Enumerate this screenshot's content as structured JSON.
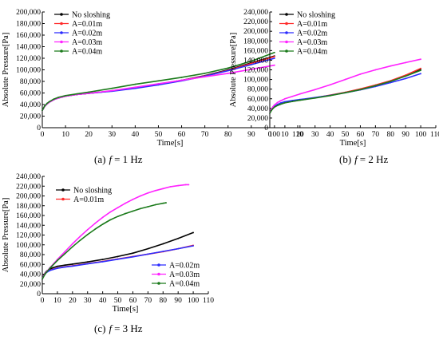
{
  "chart_data": [
    {
      "type": "line",
      "caption": {
        "letter": "(a)",
        "var": "f",
        "value": "= 1 Hz"
      },
      "xlabel": "Time[s]",
      "ylabel": "Absolute Pressure[Pa]",
      "xlim": [
        0,
        110
      ],
      "ylim": [
        0,
        200000
      ],
      "xticks": [
        "0",
        "10",
        "20",
        "30",
        "40",
        "50",
        "60",
        "70",
        "80",
        "90",
        "100",
        "110"
      ],
      "yticks": [
        "0",
        "20,000",
        "40,000",
        "60,000",
        "80,000",
        "100,000",
        "120,000",
        "140,000",
        "160,000",
        "180,000",
        "200,000"
      ],
      "legend": {
        "position": "top-left",
        "groups": [
          [
            0,
            1,
            2,
            3,
            4
          ]
        ]
      },
      "series": [
        {
          "name": "No sloshing",
          "color": "#000000",
          "x": [
            0,
            1,
            2,
            3,
            5,
            7,
            10,
            15,
            20,
            30,
            40,
            50,
            60,
            70,
            80,
            90,
            100
          ],
          "y": [
            30000,
            37000,
            41000,
            44000,
            48500,
            51500,
            54500,
            57500,
            59500,
            63500,
            69000,
            75000,
            82000,
            90000,
            100000,
            112000,
            124000
          ]
        },
        {
          "name": "A=0.01m",
          "color": "#ff2a2a",
          "x": [
            0,
            1,
            2,
            3,
            5,
            7,
            10,
            15,
            20,
            30,
            40,
            50,
            60,
            70,
            80,
            90,
            100
          ],
          "y": [
            30000,
            37000,
            41000,
            44000,
            48500,
            51500,
            54500,
            57500,
            59500,
            63500,
            68500,
            74500,
            81500,
            89500,
            99000,
            111000,
            123000
          ]
        },
        {
          "name": "A=0.02m",
          "color": "#2b2bff",
          "x": [
            0,
            1,
            2,
            3,
            5,
            7,
            10,
            15,
            20,
            30,
            40,
            50,
            60,
            70,
            80,
            90,
            100
          ],
          "y": [
            30000,
            37000,
            41000,
            44000,
            48500,
            51500,
            54500,
            57500,
            59500,
            63000,
            68000,
            74000,
            81000,
            89000,
            98500,
            109000,
            120000
          ]
        },
        {
          "name": "A=0.03m",
          "color": "#ff22ff",
          "x": [
            0,
            1,
            2,
            3,
            5,
            7,
            10,
            15,
            20,
            30,
            40,
            50,
            60,
            70,
            80,
            90,
            100
          ],
          "y": [
            30000,
            37000,
            41000,
            44000,
            48500,
            51500,
            54500,
            57500,
            59500,
            64000,
            70000,
            76000,
            82000,
            88000,
            94000,
            101000,
            108000
          ]
        },
        {
          "name": "A=0.04m",
          "color": "#1a7a1a",
          "x": [
            0,
            1,
            2,
            3,
            5,
            7,
            10,
            15,
            20,
            30,
            40,
            50,
            60,
            70,
            80,
            90,
            100
          ],
          "y": [
            30000,
            37500,
            42000,
            45000,
            49500,
            52500,
            55500,
            58500,
            61500,
            68000,
            75000,
            81000,
            87000,
            94000,
            103000,
            115000,
            130000
          ]
        }
      ]
    },
    {
      "type": "line",
      "caption": {
        "letter": "(b)",
        "var": "f",
        "value": "= 2 Hz"
      },
      "xlabel": "Time[s]",
      "ylabel": "Absolute Pressure[Pa]",
      "xlim": [
        0,
        110
      ],
      "ylim": [
        0,
        240000
      ],
      "xticks": [
        "0",
        "10",
        "20",
        "30",
        "40",
        "50",
        "60",
        "70",
        "80",
        "90",
        "100",
        "110"
      ],
      "yticks": [
        "0",
        "20,000",
        "40,000",
        "60,000",
        "80,000",
        "100,000",
        "120,000",
        "140,000",
        "160,000",
        "180,000",
        "200,000",
        "220,000",
        "240,000"
      ],
      "legend": {
        "position": "top-left",
        "groups": [
          [
            0,
            1,
            2,
            3,
            4
          ]
        ]
      },
      "series": [
        {
          "name": "No sloshing",
          "color": "#000000",
          "x": [
            0,
            1,
            2,
            3,
            5,
            7,
            10,
            15,
            20,
            30,
            40,
            50,
            60,
            70,
            80,
            90,
            100
          ],
          "y": [
            30000,
            36000,
            40000,
            43000,
            46500,
            49000,
            52000,
            55000,
            57500,
            62000,
            67000,
            73000,
            80000,
            88000,
            97000,
            108000,
            121000
          ]
        },
        {
          "name": "A=0.01m",
          "color": "#ff2a2a",
          "x": [
            0,
            1,
            2,
            3,
            5,
            7,
            10,
            15,
            20,
            30,
            40,
            50,
            60,
            70,
            80,
            90,
            100
          ],
          "y": [
            30000,
            36000,
            40000,
            43000,
            46500,
            49000,
            52000,
            55000,
            57500,
            62000,
            67500,
            73500,
            80500,
            88500,
            97500,
            109000,
            123000
          ]
        },
        {
          "name": "A=0.02m",
          "color": "#2b2bff",
          "x": [
            0,
            1,
            2,
            3,
            5,
            7,
            10,
            15,
            20,
            30,
            40,
            50,
            60,
            70,
            80,
            90,
            100
          ],
          "y": [
            30000,
            37000,
            41000,
            44000,
            48000,
            51000,
            54000,
            56500,
            58500,
            62500,
            67000,
            72500,
            78500,
            85500,
            93500,
            102000,
            112000
          ]
        },
        {
          "name": "A=0.03m",
          "color": "#ff22ff",
          "x": [
            0,
            1,
            2,
            3,
            5,
            7,
            10,
            15,
            20,
            30,
            40,
            50,
            60,
            70,
            80,
            90,
            100
          ],
          "y": [
            30000,
            38000,
            43000,
            47000,
            52000,
            55500,
            60000,
            65000,
            70000,
            79000,
            89000,
            100000,
            111000,
            120000,
            128000,
            135000,
            142000
          ]
        },
        {
          "name": "A=0.04m",
          "color": "#1a7a1a",
          "x": [
            0,
            1,
            2,
            3,
            5,
            7,
            10,
            15,
            20,
            30,
            40,
            50,
            60,
            70,
            80,
            90,
            100
          ],
          "y": [
            30000,
            35500,
            39500,
            42500,
            46000,
            48500,
            51500,
            54500,
            57000,
            61500,
            66500,
            72500,
            79000,
            87000,
            96000,
            107000,
            119000
          ]
        }
      ]
    },
    {
      "type": "line",
      "caption": {
        "letter": "(c)",
        "var": "f",
        "value": "= 3 Hz"
      },
      "xlabel": "Time[s]",
      "ylabel": "Absolute Pressure[Pa]",
      "xlim": [
        0,
        110
      ],
      "ylim": [
        0,
        240000
      ],
      "xticks": [
        "0",
        "10",
        "20",
        "30",
        "40",
        "50",
        "60",
        "70",
        "80",
        "90",
        "100",
        "110"
      ],
      "yticks": [
        "0",
        "20,000",
        "40,000",
        "60,000",
        "80,000",
        "100,000",
        "120,000",
        "140,000",
        "160,000",
        "180,000",
        "200,000",
        "220,000",
        "240,000"
      ],
      "legend": {
        "position": "split: top-left and bottom-right",
        "groups": [
          [
            0,
            1
          ],
          [
            2,
            3,
            4
          ]
        ]
      },
      "series": [
        {
          "name": "No sloshing",
          "color": "#000000",
          "x": [
            0,
            1,
            2,
            3,
            5,
            7,
            10,
            15,
            20,
            30,
            40,
            50,
            60,
            70,
            80,
            90,
            100
          ],
          "y": [
            30000,
            38000,
            43000,
            46500,
            50500,
            53000,
            56000,
            58500,
            60500,
            65000,
            70000,
            76000,
            83000,
            92000,
            102000,
            113000,
            125000
          ]
        },
        {
          "name": "A=0.01m",
          "color": "#ff2a2a",
          "x": [
            0,
            1,
            2,
            3,
            5,
            7,
            10,
            15,
            20,
            30,
            40,
            50,
            60,
            70,
            80,
            90,
            100
          ],
          "y": [
            30000,
            37000,
            41500,
            44500,
            48000,
            50000,
            52500,
            55000,
            57000,
            61500,
            66000,
            71000,
            76000,
            81000,
            86000,
            92000,
            99000
          ]
        },
        {
          "name": "A=0.02m",
          "color": "#2b2bff",
          "x": [
            0,
            1,
            2,
            3,
            5,
            7,
            10,
            15,
            20,
            30,
            40,
            50,
            60,
            70,
            80,
            90,
            100
          ],
          "y": [
            30000,
            36500,
            41000,
            44000,
            47500,
            49500,
            52000,
            54500,
            56500,
            61000,
            65500,
            70500,
            75500,
            81000,
            86500,
            92000,
            98000
          ]
        },
        {
          "name": "A=0.03m",
          "color": "#ff22ff",
          "x": [
            0,
            2,
            5,
            10,
            15,
            20,
            25,
            30,
            35,
            40,
            45,
            50,
            55,
            60,
            65,
            70,
            75,
            80,
            85,
            90,
            95,
            97
          ],
          "y": [
            30000,
            42000,
            53000,
            70000,
            86000,
            102000,
            117000,
            131000,
            144000,
            156000,
            167000,
            176000,
            185000,
            193000,
            200000,
            206000,
            211000,
            215000,
            219000,
            221000,
            223000,
            223000
          ]
        },
        {
          "name": "A=0.04m",
          "color": "#1a7a1a",
          "x": [
            0,
            2,
            5,
            10,
            15,
            20,
            25,
            30,
            35,
            40,
            45,
            50,
            55,
            60,
            65,
            70,
            75,
            80,
            82
          ],
          "y": [
            30000,
            41000,
            52000,
            68000,
            82000,
            96000,
            109000,
            121000,
            132000,
            142000,
            151000,
            158000,
            164000,
            169000,
            174000,
            178000,
            182000,
            185000,
            186000
          ]
        }
      ]
    }
  ]
}
